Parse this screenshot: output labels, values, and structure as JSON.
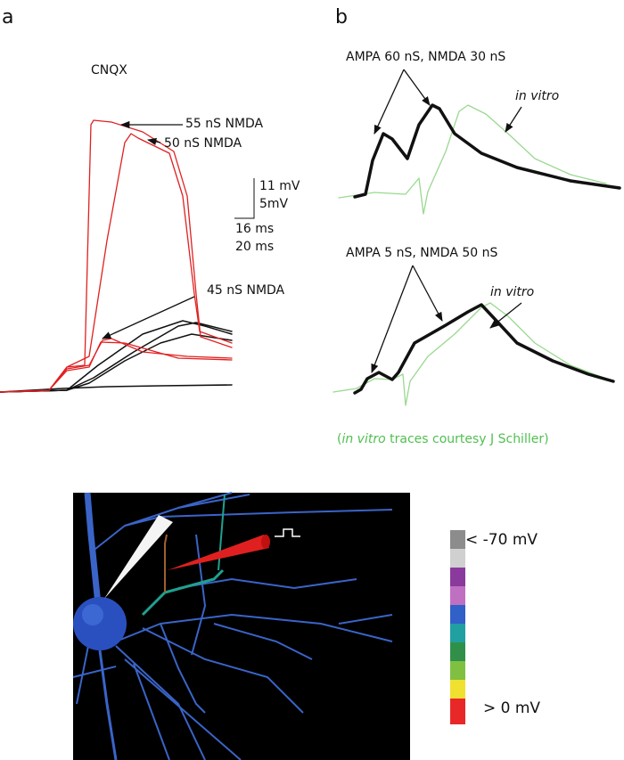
{
  "panel_a": {
    "label": "a",
    "title": "CNQX",
    "annotations": [
      "55 nS NMDA",
      "50 nS NMDA",
      "45 nS NMDA"
    ],
    "scale_bar": {
      "voltage": [
        "11 mV",
        "5mV"
      ],
      "time": [
        "16 ms",
        "20 ms"
      ]
    }
  },
  "panel_b": {
    "label": "b",
    "top": {
      "title": "AMPA 60 nS, NMDA 30 nS",
      "reference": "in vitro"
    },
    "bottom": {
      "title": "AMPA 5 nS, NMDA 50 nS",
      "reference": "in vitro"
    },
    "credit": [
      "(",
      "in vitro",
      " traces courtesy J Schiller)"
    ]
  },
  "legend": {
    "min_label": "< -70 mV",
    "max_label": "> 0 mV",
    "colors": [
      "#8c8c8c",
      "#d0d0d0",
      "#8a3a9c",
      "#c070c0",
      "#3060c8",
      "#20a0a0",
      "#30904a",
      "#80c040",
      "#f0e030",
      "#e82828"
    ]
  }
}
